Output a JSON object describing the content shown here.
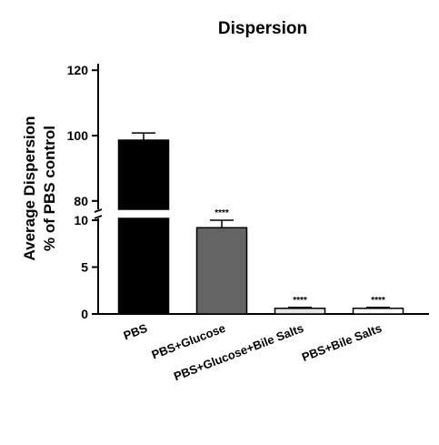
{
  "chart_data": {
    "type": "bar",
    "title": "Dispersion",
    "ylabel_lines": [
      "Average Dispersion",
      "% of PBS control"
    ],
    "xlabel": "",
    "categories": [
      "PBS",
      "PBS+Glucose",
      "PBS+Glucose+Bile Salts",
      "PBS+Bile Salts"
    ],
    "values": [
      98.6,
      9.2,
      0.6,
      0.6
    ],
    "error_upper": [
      2.2,
      0.9,
      0.1,
      0.1
    ],
    "significance": [
      "",
      "****",
      "****",
      "****"
    ],
    "bar_colors": [
      "#000000",
      "#646464",
      "#e6e6e6",
      "#ffffff"
    ],
    "y_axis_broken": true,
    "ylim_lower": [
      0,
      10
    ],
    "ylim_upper": [
      78,
      122
    ],
    "yticks_lower": [
      0,
      5,
      10
    ],
    "yticks_upper": [
      80,
      100,
      120
    ],
    "grid": false,
    "legend": "none"
  }
}
